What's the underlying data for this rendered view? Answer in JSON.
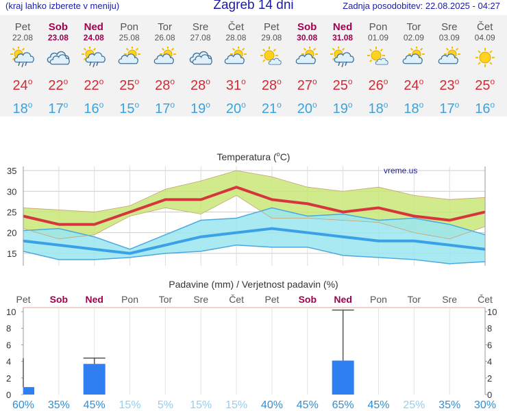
{
  "header": {
    "left_note": "(kraj lahko izberete v meniju)",
    "title": "Zagreb 14 dni",
    "updated": "Zadnja posodobitev: 22.08.2025 - 04:27"
  },
  "days": [
    {
      "name": "Pet",
      "date": "22.08",
      "weekend": false,
      "icon": "sun-cloud-rain-icon",
      "tmax": 24,
      "tmin": 18
    },
    {
      "name": "Sob",
      "date": "23.08",
      "weekend": true,
      "icon": "cloudy-icon",
      "tmax": 22,
      "tmin": 17
    },
    {
      "name": "Ned",
      "date": "24.08",
      "weekend": true,
      "icon": "sun-cloud-rain-icon",
      "tmax": 22,
      "tmin": 16
    },
    {
      "name": "Pon",
      "date": "25.08",
      "weekend": false,
      "icon": "sun-cloud-icon",
      "tmax": 25,
      "tmin": 15
    },
    {
      "name": "Tor",
      "date": "26.08",
      "weekend": false,
      "icon": "sun-cloud-icon",
      "tmax": 28,
      "tmin": 17
    },
    {
      "name": "Sre",
      "date": "27.08",
      "weekend": false,
      "icon": "cloudy-icon",
      "tmax": 28,
      "tmin": 19
    },
    {
      "name": "Čet",
      "date": "28.08",
      "weekend": false,
      "icon": "sun-cloud-icon",
      "tmax": 31,
      "tmin": 20
    },
    {
      "name": "Pet",
      "date": "29.08",
      "weekend": false,
      "icon": "sun-small-cloud-icon",
      "tmax": 28,
      "tmin": 21
    },
    {
      "name": "Sob",
      "date": "30.08",
      "weekend": true,
      "icon": "sun-cloud-icon",
      "tmax": 27,
      "tmin": 20
    },
    {
      "name": "Ned",
      "date": "31.08",
      "weekend": true,
      "icon": "sun-cloud-rain-icon",
      "tmax": 25,
      "tmin": 19
    },
    {
      "name": "Pon",
      "date": "01.09",
      "weekend": false,
      "icon": "sun-small-cloud-icon",
      "tmax": 26,
      "tmin": 18
    },
    {
      "name": "Tor",
      "date": "02.09",
      "weekend": false,
      "icon": "sun-cloud-icon",
      "tmax": 24,
      "tmin": 18
    },
    {
      "name": "Sre",
      "date": "03.09",
      "weekend": false,
      "icon": "sun-cloud-icon",
      "tmax": 23,
      "tmin": 17
    },
    {
      "name": "Čet",
      "date": "04.09",
      "weekend": false,
      "icon": "sun-icon",
      "tmax": 25,
      "tmin": 16
    }
  ],
  "chart_data": [
    {
      "type": "line",
      "title": "Temperatura (°C)",
      "watermark": "vreme.us",
      "ylim": [
        12,
        36
      ],
      "yticks": [
        15,
        20,
        25,
        30,
        35
      ],
      "grid": true,
      "series": [
        {
          "values": [
            24,
            22,
            22,
            25,
            28,
            28,
            31,
            28,
            27,
            25,
            26,
            24,
            23,
            25
          ],
          "color": "#d7353c"
        },
        {
          "values": [
            18,
            17,
            16,
            15,
            17,
            19,
            20,
            21,
            20,
            19,
            18,
            18,
            17,
            16
          ],
          "color": "#3aa0e8"
        }
      ],
      "max_range_band": {
        "color": "#c8e678",
        "upper": [
          26,
          25.5,
          25,
          26.5,
          30.5,
          32.5,
          35,
          33.5,
          31,
          30,
          31,
          29,
          28,
          28.5
        ],
        "lower": [
          21,
          18.5,
          19.5,
          24,
          26,
          24.5,
          29,
          23.5,
          23.5,
          23,
          22.5,
          20,
          18.5,
          21.5
        ]
      },
      "min_range_band": {
        "color": "#9ae6f0",
        "upper": [
          20.5,
          21,
          19,
          16,
          19.5,
          23,
          23.5,
          26,
          24,
          24.5,
          23,
          23.5,
          22,
          19.5
        ],
        "lower": [
          15.5,
          13.5,
          13.5,
          14,
          15,
          15.5,
          17,
          16.5,
          16.5,
          14.5,
          14,
          13.5,
          12.5,
          13
        ]
      }
    },
    {
      "type": "bar",
      "title": "Padavine (mm) / Verjetnost padavin (%)",
      "ylim": [
        0,
        10.5
      ],
      "yticks": [
        0,
        2,
        4,
        6,
        8,
        10
      ],
      "color": "#2f7ff0",
      "values": [
        0.9,
        0,
        3.7,
        0,
        0,
        0,
        0,
        0,
        0,
        4.1,
        0,
        0,
        0,
        0
      ],
      "error_max": [
        4.4,
        0,
        4.4,
        0,
        0,
        0,
        0,
        0,
        0,
        10.2,
        0,
        0,
        0,
        0
      ],
      "probability": [
        "60%",
        "35%",
        "45%",
        "15%",
        "5%",
        "15%",
        "15%",
        "40%",
        "45%",
        "65%",
        "45%",
        "25%",
        "35%",
        "30%"
      ],
      "probability_values": [
        60,
        35,
        45,
        15,
        5,
        15,
        15,
        40,
        45,
        65,
        45,
        25,
        35,
        30
      ]
    }
  ]
}
